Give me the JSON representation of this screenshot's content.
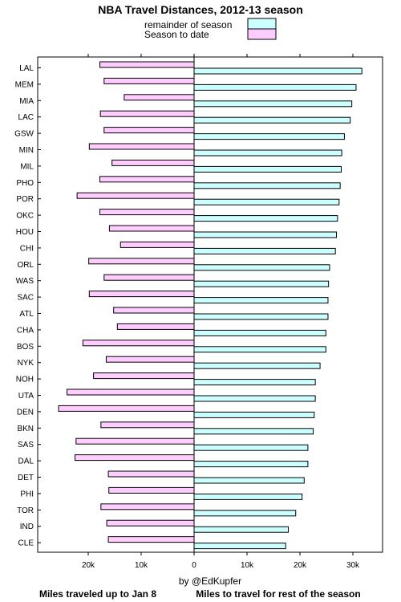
{
  "chart_data": {
    "type": "bar",
    "orientation": "horizontal",
    "title": "NBA Travel Distances, 2012-13 season",
    "legend": {
      "placement": "top",
      "entries": [
        {
          "label": "remainder of season",
          "color": "#ccffff"
        },
        {
          "label": "Season to date",
          "color": "#ffccff"
        }
      ]
    },
    "credit": "by @EdKupfer",
    "xlabel_left": "Miles traveled up to Jan 8",
    "xlabel_right": "Miles to travel for rest of the season",
    "x_ticks": [
      {
        "value": -20000,
        "label": "20k"
      },
      {
        "value": -10000,
        "label": "10k"
      },
      {
        "value": 0,
        "label": "0"
      },
      {
        "value": 10000,
        "label": "10k"
      },
      {
        "value": 20000,
        "label": "20k"
      },
      {
        "value": 30000,
        "label": "30k"
      }
    ],
    "xlim": [
      -30000,
      36000
    ],
    "grid": false,
    "categories": [
      "LAL",
      "MEM",
      "MIA",
      "LAC",
      "GSW",
      "MIN",
      "MIL",
      "PHO",
      "POR",
      "OKC",
      "HOU",
      "CHI",
      "ORL",
      "WAS",
      "SAC",
      "ATL",
      "CHA",
      "BOS",
      "NYK",
      "NOH",
      "UTA",
      "DEN",
      "BKN",
      "SAS",
      "DAL",
      "DET",
      "PHI",
      "TOR",
      "IND",
      "CLE"
    ],
    "series": [
      {
        "name": "Season to date",
        "color": "#ffccff",
        "values": [
          17800,
          17000,
          13200,
          17700,
          17000,
          19800,
          15500,
          17800,
          22100,
          17800,
          16000,
          13900,
          19900,
          17000,
          19800,
          15200,
          14500,
          21000,
          16600,
          19000,
          24000,
          25600,
          17600,
          22300,
          22500,
          16200,
          16100,
          17600,
          16500,
          16200
        ]
      },
      {
        "name": "remainder of season",
        "color": "#ccffff",
        "values": [
          31700,
          30600,
          29800,
          29500,
          28400,
          27900,
          27800,
          27600,
          27400,
          27100,
          26900,
          26700,
          25600,
          25400,
          25300,
          25300,
          24900,
          24900,
          23800,
          22900,
          22900,
          22700,
          22500,
          21500,
          21500,
          20800,
          20400,
          19200,
          17800,
          17300
        ]
      }
    ]
  }
}
